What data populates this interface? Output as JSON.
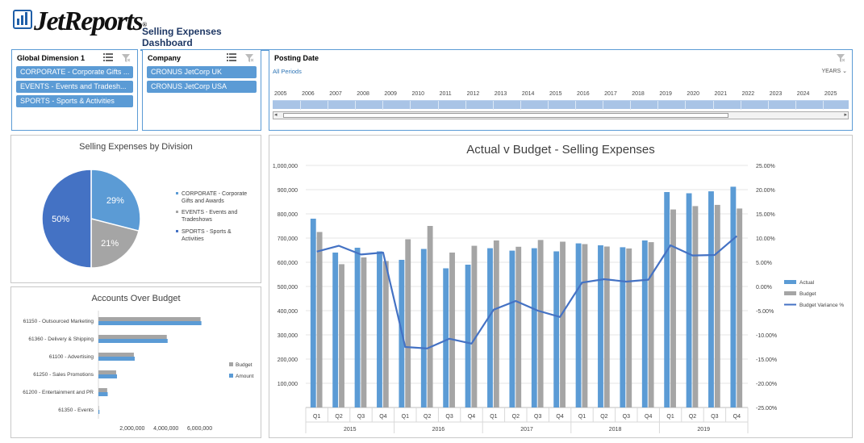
{
  "header": {
    "brand": "JetReports",
    "brand_mark": "®",
    "title": "Selling Expenses Dashboard"
  },
  "slicers": {
    "dimension": {
      "title": "Global Dimension 1",
      "items": [
        "CORPORATE - Corporate Gifts ...",
        "EVENTS - Events and Tradesh...",
        "SPORTS - Sports & Activities"
      ]
    },
    "company": {
      "title": "Company",
      "items": [
        "CRONUS JetCorp UK",
        "CRONUS JetCorp USA"
      ]
    }
  },
  "timeline": {
    "title": "Posting Date",
    "period": "All Periods",
    "level": "YEARS",
    "years": [
      "2005",
      "2006",
      "2007",
      "2008",
      "2009",
      "2010",
      "2011",
      "2012",
      "2013",
      "2014",
      "2015",
      "2016",
      "2017",
      "2018",
      "2019",
      "2020",
      "2021",
      "2022",
      "2023",
      "2024",
      "2025"
    ]
  },
  "icons": {
    "multi_select": "multi-select-icon",
    "clear_filter": "clear-filter-icon",
    "dropdown": "chevron-down-icon"
  },
  "colors": {
    "accent": "#5b9bd5",
    "actual": "#5b9bd5",
    "budget": "#a5a5a5",
    "variance": "#4472c4",
    "pie1": "#5b9bd5",
    "pie2": "#a5a5a5",
    "pie3": "#4472c4"
  },
  "chart_data": [
    {
      "type": "pie",
      "title": "Selling Expenses by Division",
      "categories": [
        "CORPORATE - Corporate Gifts and Awards",
        "EVENTS - Events and Tradeshows",
        "SPORTS - Sports & Activities"
      ],
      "values": [
        29,
        21,
        50
      ],
      "labels": [
        "29%",
        "21%",
        "50%"
      ],
      "legend": "right"
    },
    {
      "type": "bar",
      "orientation": "horizontal",
      "title": "Accounts Over Budget",
      "categories": [
        "61150 - Outsourced Marketing",
        "61360 - Delivery & Shipping",
        "61100 - Advertising",
        "61250 - Sales Promotions",
        "61200 - Entertainment and PR",
        "61350 - Events"
      ],
      "series": [
        {
          "name": "Budget",
          "values": [
            6050000,
            4050000,
            2100000,
            1050000,
            520000,
            30000
          ]
        },
        {
          "name": "Amount",
          "values": [
            6100000,
            4100000,
            2150000,
            1100000,
            550000,
            60000
          ]
        }
      ],
      "xticks": [
        "2,000,000",
        "4,000,000",
        "6,000,000"
      ],
      "xlim": [
        0,
        6500000
      ],
      "legend": "right"
    },
    {
      "type": "bar",
      "title": "Actual v Budget - Selling Expenses",
      "quarters": [
        "Q1",
        "Q2",
        "Q3",
        "Q4",
        "Q1",
        "Q2",
        "Q3",
        "Q4",
        "Q1",
        "Q2",
        "Q3",
        "Q4",
        "Q1",
        "Q2",
        "Q3",
        "Q4",
        "Q1",
        "Q2",
        "Q3",
        "Q4"
      ],
      "years": [
        "2015",
        "2016",
        "2017",
        "2018",
        "2019"
      ],
      "series": [
        {
          "name": "Actual",
          "type": "bar",
          "axis": "left",
          "values": [
            780000,
            640000,
            660000,
            645000,
            610000,
            655000,
            575000,
            590000,
            658000,
            648000,
            658000,
            645000,
            678000,
            670000,
            662000,
            690000,
            890000,
            885000,
            893000,
            912000
          ]
        },
        {
          "name": "Budget",
          "type": "bar",
          "axis": "left",
          "values": [
            725000,
            592000,
            620000,
            605000,
            695000,
            750000,
            640000,
            668000,
            690000,
            664000,
            692000,
            685000,
            675000,
            665000,
            657000,
            683000,
            818000,
            832000,
            837000,
            822000
          ]
        },
        {
          "name": "Budget Variance %",
          "type": "line",
          "axis": "right",
          "values": [
            7.2,
            8.4,
            6.6,
            7.0,
            -12.5,
            -12.8,
            -10.8,
            -11.8,
            -4.8,
            -3.0,
            -5.0,
            -6.3,
            0.8,
            1.5,
            1.0,
            1.4,
            8.5,
            6.4,
            6.5,
            10.4
          ]
        }
      ],
      "yticks": [
        "100,000",
        "200,000",
        "300,000",
        "400,000",
        "500,000",
        "600,000",
        "700,000",
        "800,000",
        "900,000",
        "1,000,000"
      ],
      "ylim": [
        0,
        1000000
      ],
      "y2ticks": [
        "-25.00%",
        "-20.00%",
        "-15.00%",
        "-10.00%",
        "-5.00%",
        "0.00%",
        "5.00%",
        "10.00%",
        "15.00%",
        "20.00%",
        "25.00%"
      ],
      "y2lim": [
        -25,
        25
      ],
      "grid": true,
      "legend": "right"
    }
  ]
}
